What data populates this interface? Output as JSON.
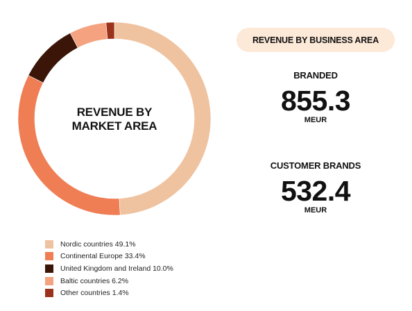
{
  "chart_data": {
    "type": "pie",
    "title": "REVENUE BY MARKET AREA",
    "title_lines": [
      "REVENUE BY",
      "MARKET AREA"
    ],
    "legend_position": "bottom-left",
    "slices": [
      {
        "label": "Nordic countries 49.1%",
        "value": 49.1,
        "color": "#f0c3a0"
      },
      {
        "label": "Continental Europe 33.4%",
        "value": 33.4,
        "color": "#ef7e55"
      },
      {
        "label": "United Kingdom and Ireland 10.0%",
        "value": 10.0,
        "color": "#3a1508"
      },
      {
        "label": "Baltic countries 6.2%",
        "value": 6.2,
        "color": "#f4a27f"
      },
      {
        "label": "Other countries 1.4%",
        "value": 1.4,
        "color": "#9b321c"
      }
    ]
  },
  "business_area": {
    "title": "REVENUE BY BUSINESS AREA",
    "branded": {
      "label": "BRANDED",
      "value": "855.3",
      "unit": "MEUR"
    },
    "customer_brands": {
      "label": "CUSTOMER BRANDS",
      "value": "532.4",
      "unit": "MEUR"
    }
  }
}
